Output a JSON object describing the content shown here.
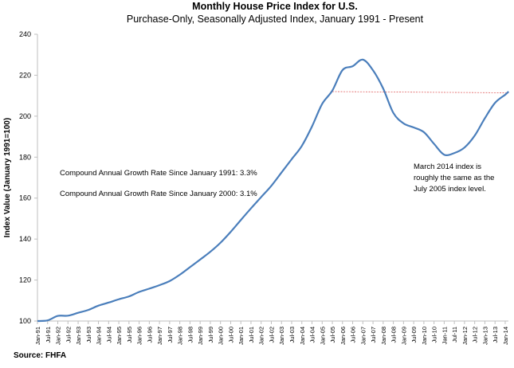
{
  "chart_data": {
    "type": "line",
    "title": "Monthly House Price Index for U.S.",
    "subtitle": "Purchase-Only, Seasonally Adjusted Index, January 1991 - Present",
    "xlabel": "",
    "ylabel": "Index Value (January 1991=100)",
    "ylim": [
      100,
      240
    ],
    "yticks": [
      100,
      120,
      140,
      160,
      180,
      200,
      220,
      240
    ],
    "grid": false,
    "line_color": "#4a7ebb",
    "x_tick_labels": [
      "Jan-91",
      "Jul-91",
      "Jan-92",
      "Jul-92",
      "Jan-93",
      "Jul-93",
      "Jan-94",
      "Jul-94",
      "Jan-95",
      "Jul-95",
      "Jan-96",
      "Jul-96",
      "Jan-97",
      "Jul-97",
      "Jan-98",
      "Jul-98",
      "Jan-99",
      "Jul-99",
      "Jan-00",
      "Jul-00",
      "Jan-01",
      "Jul-01",
      "Jan-02",
      "Jul-02",
      "Jan-03",
      "Jul-03",
      "Jan-04",
      "Jul-04",
      "Jan-05",
      "Jul-05",
      "Jan-06",
      "Jul-06",
      "Jan-07",
      "Jul-07",
      "Jan-08",
      "Jul-08",
      "Jan-09",
      "Jul-09",
      "Jan-10",
      "Jul-10",
      "Jan-11",
      "Jul-11",
      "Jan-12",
      "Jul-12",
      "Jan-13",
      "Jul-13",
      "Jan-14"
    ],
    "x": [
      "Jan-91",
      "Jul-91",
      "Jan-92",
      "Jul-92",
      "Jan-93",
      "Jul-93",
      "Jan-94",
      "Jul-94",
      "Jan-95",
      "Jul-95",
      "Jan-96",
      "Jul-96",
      "Jan-97",
      "Jul-97",
      "Jan-98",
      "Jul-98",
      "Jan-99",
      "Jul-99",
      "Jan-00",
      "Jul-00",
      "Jan-01",
      "Jul-01",
      "Jan-02",
      "Jul-02",
      "Jan-03",
      "Jul-03",
      "Jan-04",
      "Jul-04",
      "Jan-05",
      "Jul-05",
      "Jan-06",
      "Jul-06",
      "Jan-07",
      "Jul-07",
      "Jan-08",
      "Jul-08",
      "Jan-09",
      "Jul-09",
      "Jan-10",
      "Jul-10",
      "Jan-11",
      "Jul-11",
      "Jan-12",
      "Jul-12",
      "Jan-13",
      "Jul-13",
      "Jan-14",
      "Mar-14"
    ],
    "values": [
      100,
      100.3,
      102.5,
      102.6,
      104,
      105.4,
      107.5,
      109,
      110.6,
      112,
      114.2,
      115.8,
      117.5,
      119.5,
      122.6,
      126.3,
      130,
      133.8,
      138.2,
      143.5,
      149.3,
      155,
      160.5,
      166,
      172.5,
      179,
      185.5,
      195,
      206,
      212.5,
      222.5,
      224.4,
      227.6,
      222.4,
      213.5,
      201.6,
      196.5,
      194.5,
      192.2,
      186.5,
      181.2,
      182,
      184.7,
      190.5,
      199,
      206.5,
      210.5,
      212
    ],
    "reference_line": {
      "from": "Jul-05",
      "to": "Mar-14",
      "value": 212,
      "color": "#e06060",
      "style": "dashed"
    },
    "annotations": [
      "Compound Annual Growth Rate Since January 1991:  3.3%",
      "Compound Annual Growth Rate Since January 2000:  3.1%",
      "March 2014 index is",
      "roughly the same as the",
      "July 2005 index level."
    ],
    "source": "Source: FHFA"
  }
}
